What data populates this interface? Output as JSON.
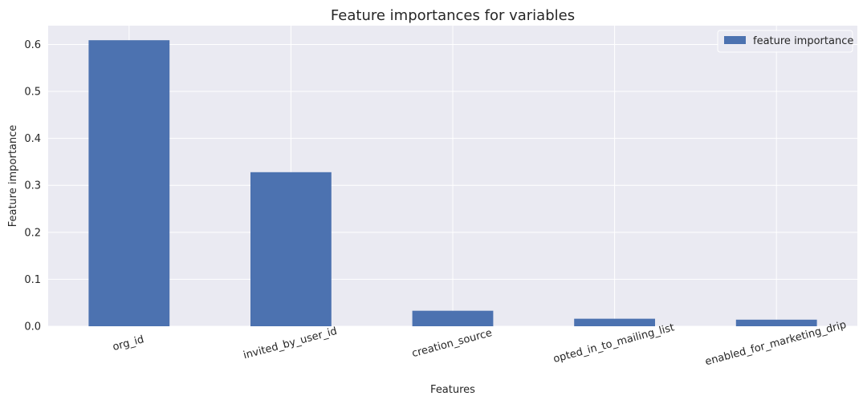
{
  "chart_data": {
    "type": "bar",
    "title": "Feature importances for variables",
    "xlabel": "Features",
    "ylabel": "Feature importance",
    "categories": [
      "org_id",
      "invited_by_user_id",
      "creation_source",
      "opted_in_to_mailing_list",
      "enabled_for_marketing_drip"
    ],
    "series": [
      {
        "name": "feature importance",
        "values": [
          0.609,
          0.328,
          0.033,
          0.016,
          0.014
        ]
      }
    ],
    "ylim": [
      0,
      0.64
    ],
    "yticks": [
      "0.0",
      "0.1",
      "0.2",
      "0.3",
      "0.4",
      "0.5",
      "0.6"
    ],
    "grid": true,
    "legend_position": "top-right",
    "x_tick_rotation": "-15deg",
    "colors": {
      "bar": "#4c72b0",
      "plot_background": "#eaeaf2",
      "grid": "#ffffff"
    }
  }
}
